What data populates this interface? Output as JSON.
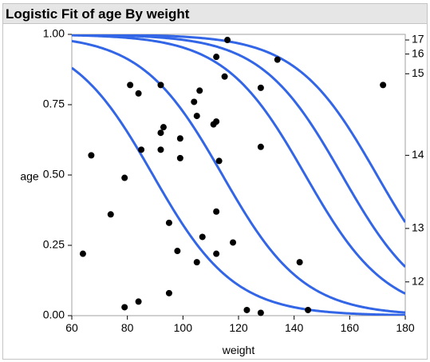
{
  "title": "Logistic Fit of age By weight",
  "chart_data": {
    "type": "scatter",
    "title": "Logistic Fit of age By weight",
    "xlabel": "weight",
    "ylabel": "age",
    "xlim": [
      60,
      180
    ],
    "ylim": [
      0,
      1
    ],
    "x_ticks": [
      60,
      80,
      100,
      120,
      140,
      160,
      180
    ],
    "y_ticks": [
      0,
      0.25,
      0.5,
      0.75,
      1
    ],
    "y_tick_labels": [
      "0.00",
      "0.25",
      "0.50",
      "0.75",
      "1.00"
    ],
    "right_axis_labels": [
      {
        "label": "12",
        "at": 0.12
      },
      {
        "label": "13",
        "at": 0.31
      },
      {
        "label": "14",
        "at": 0.57
      },
      {
        "label": "15",
        "at": 0.86
      },
      {
        "label": "16",
        "at": 0.93
      },
      {
        "label": "17",
        "at": 0.98
      }
    ],
    "grid": false,
    "point_color": "#000000",
    "curve_color": "#3366e6",
    "points": [
      {
        "x": 64,
        "y": 0.22
      },
      {
        "x": 67,
        "y": 0.57
      },
      {
        "x": 74,
        "y": 0.36
      },
      {
        "x": 79,
        "y": 0.49
      },
      {
        "x": 79,
        "y": 0.03
      },
      {
        "x": 81,
        "y": 0.82
      },
      {
        "x": 84,
        "y": 0.79
      },
      {
        "x": 84,
        "y": 0.05
      },
      {
        "x": 85,
        "y": 0.59
      },
      {
        "x": 92,
        "y": 0.65
      },
      {
        "x": 92,
        "y": 0.59
      },
      {
        "x": 92,
        "y": 0.82
      },
      {
        "x": 93,
        "y": 0.67
      },
      {
        "x": 95,
        "y": 0.33
      },
      {
        "x": 95,
        "y": 0.08
      },
      {
        "x": 98,
        "y": 0.23
      },
      {
        "x": 99,
        "y": 0.63
      },
      {
        "x": 99,
        "y": 0.56
      },
      {
        "x": 104,
        "y": 0.76
      },
      {
        "x": 105,
        "y": 0.71
      },
      {
        "x": 105,
        "y": 0.19
      },
      {
        "x": 106,
        "y": 0.8
      },
      {
        "x": 107,
        "y": 0.28
      },
      {
        "x": 111,
        "y": 0.68
      },
      {
        "x": 112,
        "y": 0.69
      },
      {
        "x": 112,
        "y": 0.92
      },
      {
        "x": 112,
        "y": 0.37
      },
      {
        "x": 112,
        "y": 0.22
      },
      {
        "x": 113,
        "y": 0.55
      },
      {
        "x": 115,
        "y": 0.85
      },
      {
        "x": 116,
        "y": 0.98
      },
      {
        "x": 118,
        "y": 0.26
      },
      {
        "x": 123,
        "y": 0.02
      },
      {
        "x": 128,
        "y": 0.81
      },
      {
        "x": 128,
        "y": 0.6
      },
      {
        "x": 128,
        "y": 0.01
      },
      {
        "x": 134,
        "y": 0.91
      },
      {
        "x": 142,
        "y": 0.19
      },
      {
        "x": 145,
        "y": 0.02
      },
      {
        "x": 172,
        "y": 0.82
      }
    ],
    "curves": [
      {
        "x0": 89.2,
        "k": 0.0685
      },
      {
        "x0": 114.2,
        "k": 0.0685
      },
      {
        "x0": 144.0,
        "k": 0.0685
      },
      {
        "x0": 157.2,
        "k": 0.0685
      },
      {
        "x0": 169.8,
        "k": 0.0685
      }
    ]
  }
}
